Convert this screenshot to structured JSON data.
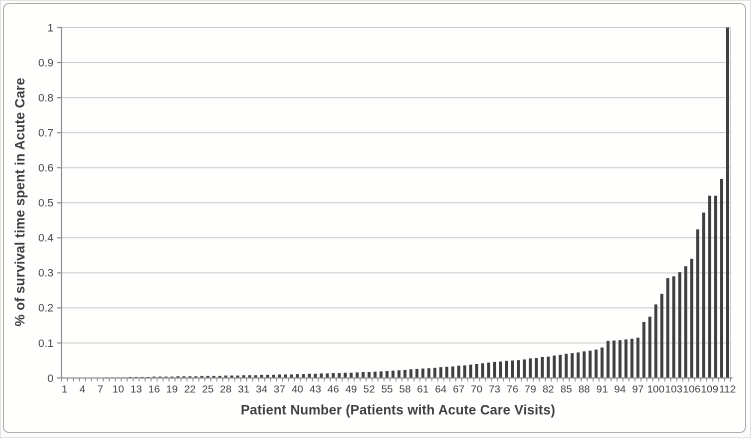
{
  "figure": {
    "background": "#ffffff",
    "border_color": "#afafad"
  },
  "chart_data": {
    "type": "bar",
    "title": "",
    "xlabel": "Patient Number (Patients with Acute Care Visits)",
    "ylabel": "% of survival time spent in Acute Care",
    "ylim": [
      0,
      1
    ],
    "grid": true,
    "legend": false,
    "bar_color": "#3f3f3f",
    "gridline_color": "#cbcbcb",
    "axis_color": "#8f8f8f",
    "text_color": "#3f3f3f",
    "y_ticks": [
      0,
      0.1,
      0.2,
      0.3,
      0.4,
      0.5,
      0.6,
      0.7,
      0.8,
      0.9,
      1
    ],
    "y_tick_labels": [
      "0",
      "0.1",
      "0.2",
      "0.3",
      "0.4",
      "0.5",
      "0.6",
      "0.7",
      "0.8",
      "0.9",
      "1"
    ],
    "x_tick_labels": [
      "1",
      "4",
      "7",
      "10",
      "13",
      "16",
      "19",
      "22",
      "25",
      "28",
      "31",
      "34",
      "37",
      "40",
      "43",
      "46",
      "49",
      "52",
      "55",
      "58",
      "61",
      "64",
      "67",
      "70",
      "73",
      "76",
      "79",
      "82",
      "85",
      "88",
      "91",
      "94",
      "97",
      "100",
      "103",
      "106",
      "109",
      "112"
    ],
    "categories": [
      1,
      2,
      3,
      4,
      5,
      6,
      7,
      8,
      9,
      10,
      11,
      12,
      13,
      14,
      15,
      16,
      17,
      18,
      19,
      20,
      21,
      22,
      23,
      24,
      25,
      26,
      27,
      28,
      29,
      30,
      31,
      32,
      33,
      34,
      35,
      36,
      37,
      38,
      39,
      40,
      41,
      42,
      43,
      44,
      45,
      46,
      47,
      48,
      49,
      50,
      51,
      52,
      53,
      54,
      55,
      56,
      57,
      58,
      59,
      60,
      61,
      62,
      63,
      64,
      65,
      66,
      67,
      68,
      69,
      70,
      71,
      72,
      73,
      74,
      75,
      76,
      77,
      78,
      79,
      80,
      81,
      82,
      83,
      84,
      85,
      86,
      87,
      88,
      89,
      90,
      91,
      92,
      93,
      94,
      95,
      96,
      97,
      98,
      99,
      100,
      101,
      102,
      103,
      104,
      105,
      106,
      107,
      108,
      109,
      110,
      111,
      112
    ],
    "values": [
      0.0,
      0.0,
      0.001,
      0.001,
      0.001,
      0.001,
      0.001,
      0.002,
      0.002,
      0.002,
      0.002,
      0.003,
      0.003,
      0.003,
      0.003,
      0.004,
      0.004,
      0.004,
      0.004,
      0.005,
      0.005,
      0.005,
      0.005,
      0.006,
      0.006,
      0.006,
      0.006,
      0.007,
      0.007,
      0.007,
      0.008,
      0.008,
      0.008,
      0.009,
      0.009,
      0.009,
      0.01,
      0.01,
      0.01,
      0.011,
      0.011,
      0.012,
      0.012,
      0.013,
      0.013,
      0.014,
      0.014,
      0.015,
      0.015,
      0.016,
      0.017,
      0.017,
      0.018,
      0.019,
      0.02,
      0.021,
      0.022,
      0.023,
      0.025,
      0.026,
      0.027,
      0.028,
      0.029,
      0.031,
      0.032,
      0.033,
      0.035,
      0.036,
      0.038,
      0.04,
      0.042,
      0.044,
      0.046,
      0.047,
      0.049,
      0.05,
      0.051,
      0.053,
      0.056,
      0.057,
      0.06,
      0.061,
      0.064,
      0.066,
      0.069,
      0.071,
      0.073,
      0.076,
      0.078,
      0.081,
      0.087,
      0.106,
      0.107,
      0.108,
      0.11,
      0.112,
      0.115,
      0.16,
      0.175,
      0.21,
      0.24,
      0.285,
      0.29,
      0.302,
      0.319,
      0.34,
      0.424,
      0.472,
      0.52,
      0.52,
      0.568,
      1.0
    ]
  }
}
